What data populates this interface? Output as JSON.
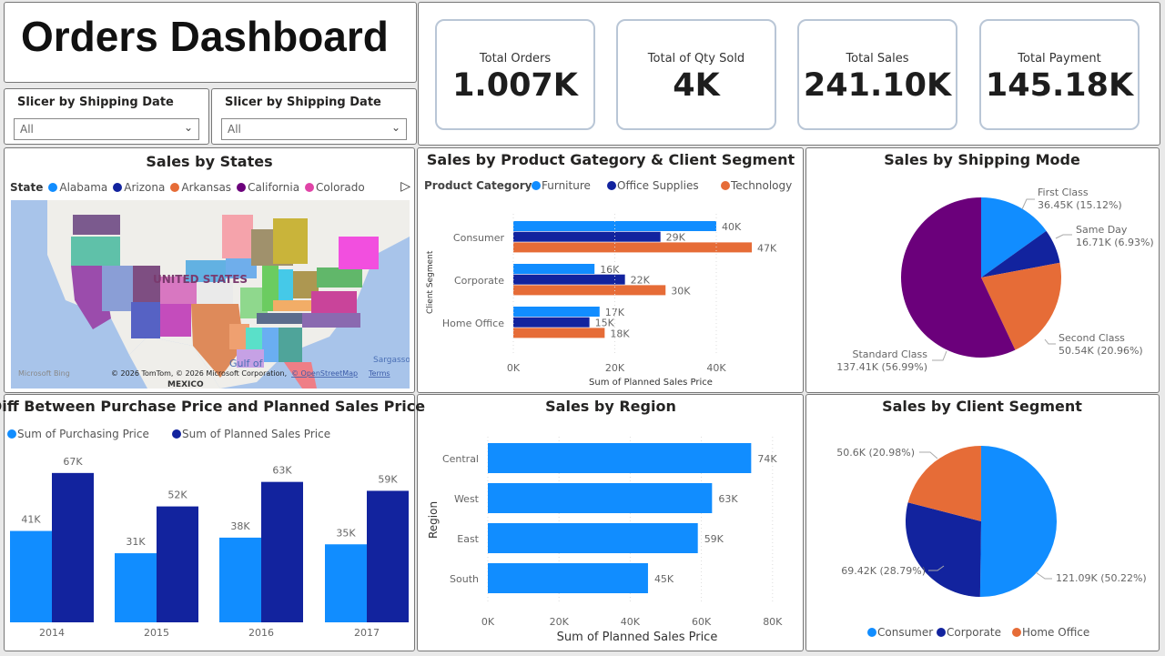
{
  "header": {
    "title": "Orders Dashboard"
  },
  "slicers": [
    {
      "label": "Slicer by Shipping Date",
      "value": "All"
    },
    {
      "label": "Slicer by Shipping Date",
      "value": "All"
    }
  ],
  "kpis": [
    {
      "label": "Total Orders",
      "value": "1.007K"
    },
    {
      "label": "Total of Qty Sold",
      "value": "4K"
    },
    {
      "label": "Total Sales",
      "value": "241.10K"
    },
    {
      "label": "Total Payment",
      "value": "145.18K"
    }
  ],
  "colors": {
    "light_blue": "#118DFF",
    "dark_blue": "#12239E",
    "orange": "#E66C37",
    "purple": "#6B007B",
    "pink": "#E044A7"
  },
  "map": {
    "title": "Sales by States",
    "legend_title": "State",
    "legend": [
      {
        "name": "Alabama",
        "color": "#118DFF"
      },
      {
        "name": "Arizona",
        "color": "#12239E"
      },
      {
        "name": "Arkansas",
        "color": "#E66C37"
      },
      {
        "name": "California",
        "color": "#6B007B"
      },
      {
        "name": "Colorado",
        "color": "#E044A7"
      }
    ],
    "country_label": "UNITED STATES",
    "gulf_label": "Gulf of",
    "sea_label": "Sargasso",
    "mexico_label": "MEXICO",
    "bing": "Microsoft Bing",
    "attribution": "© 2026 TomTom, © 2026 Microsoft Corporation,",
    "osm": "© OpenStreetMap",
    "terms": "Terms",
    "next_icon": "play-triangle-icon"
  },
  "chart_data": [
    {
      "id": "product",
      "type": "bar",
      "orientation": "horizontal",
      "title": "Sales by Product Gategory & Client Segment",
      "legend_title": "Product Category",
      "categories": [
        "Consumer",
        "Corporate",
        "Home Office"
      ],
      "series": [
        {
          "name": "Furniture",
          "values": [
            40,
            16,
            17
          ],
          "labels": [
            "40K",
            "16K",
            "17K"
          ]
        },
        {
          "name": "Office Supplies",
          "values": [
            29,
            22,
            15
          ],
          "labels": [
            "29K",
            "22K",
            "15K"
          ]
        },
        {
          "name": "Technology",
          "values": [
            47,
            30,
            18
          ],
          "labels": [
            "47K",
            "30K",
            "18K"
          ]
        }
      ],
      "xlabel": "Sum of Planned Sales Price",
      "ylabel": "Client Segment",
      "xticks": [
        "0K",
        "20K",
        "40K"
      ],
      "xlim": [
        0,
        50
      ],
      "unit": "K"
    },
    {
      "id": "shipping",
      "type": "pie",
      "title": "Sales by Shipping Mode",
      "slices": [
        {
          "name": "First Class",
          "value": 36.45,
          "label": "36.45K (15.12%)",
          "pct": 15.12
        },
        {
          "name": "Same Day",
          "value": 16.71,
          "label": "16.71K (6.93%)",
          "pct": 6.93
        },
        {
          "name": "Second Class",
          "value": 50.54,
          "label": "50.54K (20.96%)",
          "pct": 20.96
        },
        {
          "name": "Standard Class",
          "value": 137.41,
          "label": "137.41K (56.99%)",
          "pct": 56.99
        }
      ]
    },
    {
      "id": "diff",
      "type": "bar",
      "title": "Diff Between Purchase Price and Planned Sales Price",
      "categories": [
        "2014",
        "2015",
        "2016",
        "2017"
      ],
      "series": [
        {
          "name": "Sum of Purchasing Price",
          "values": [
            41,
            31,
            38,
            35
          ],
          "labels": [
            "41K",
            "31K",
            "38K",
            "35K"
          ]
        },
        {
          "name": "Sum of Planned Sales Price",
          "values": [
            67,
            52,
            63,
            59
          ],
          "labels": [
            "67K",
            "52K",
            "63K",
            "59K"
          ]
        }
      ],
      "unit": "K"
    },
    {
      "id": "region",
      "type": "bar",
      "orientation": "horizontal",
      "title": "Sales by Region",
      "categories": [
        "Central",
        "West",
        "East",
        "South"
      ],
      "values": [
        74,
        63,
        59,
        45
      ],
      "labels": [
        "74K",
        "63K",
        "59K",
        "45K"
      ],
      "xlabel": "Sum of Planned Sales Price",
      "ylabel": "Region",
      "xticks": [
        "0K",
        "20K",
        "40K",
        "60K",
        "80K"
      ],
      "xlim": [
        0,
        80
      ]
    },
    {
      "id": "client",
      "type": "pie",
      "title": "Sales by Client Segment",
      "slices": [
        {
          "name": "Consumer",
          "value": 121.09,
          "label": "121.09K (50.22%)",
          "pct": 50.22
        },
        {
          "name": "Corporate",
          "value": 69.42,
          "label": "69.42K (28.79%)",
          "pct": 28.79
        },
        {
          "name": "Home Office",
          "value": 50.6,
          "label": "50.6K (20.98%)",
          "pct": 20.98
        }
      ],
      "legend": [
        "Consumer",
        "Corporate",
        "Home Office"
      ]
    }
  ]
}
